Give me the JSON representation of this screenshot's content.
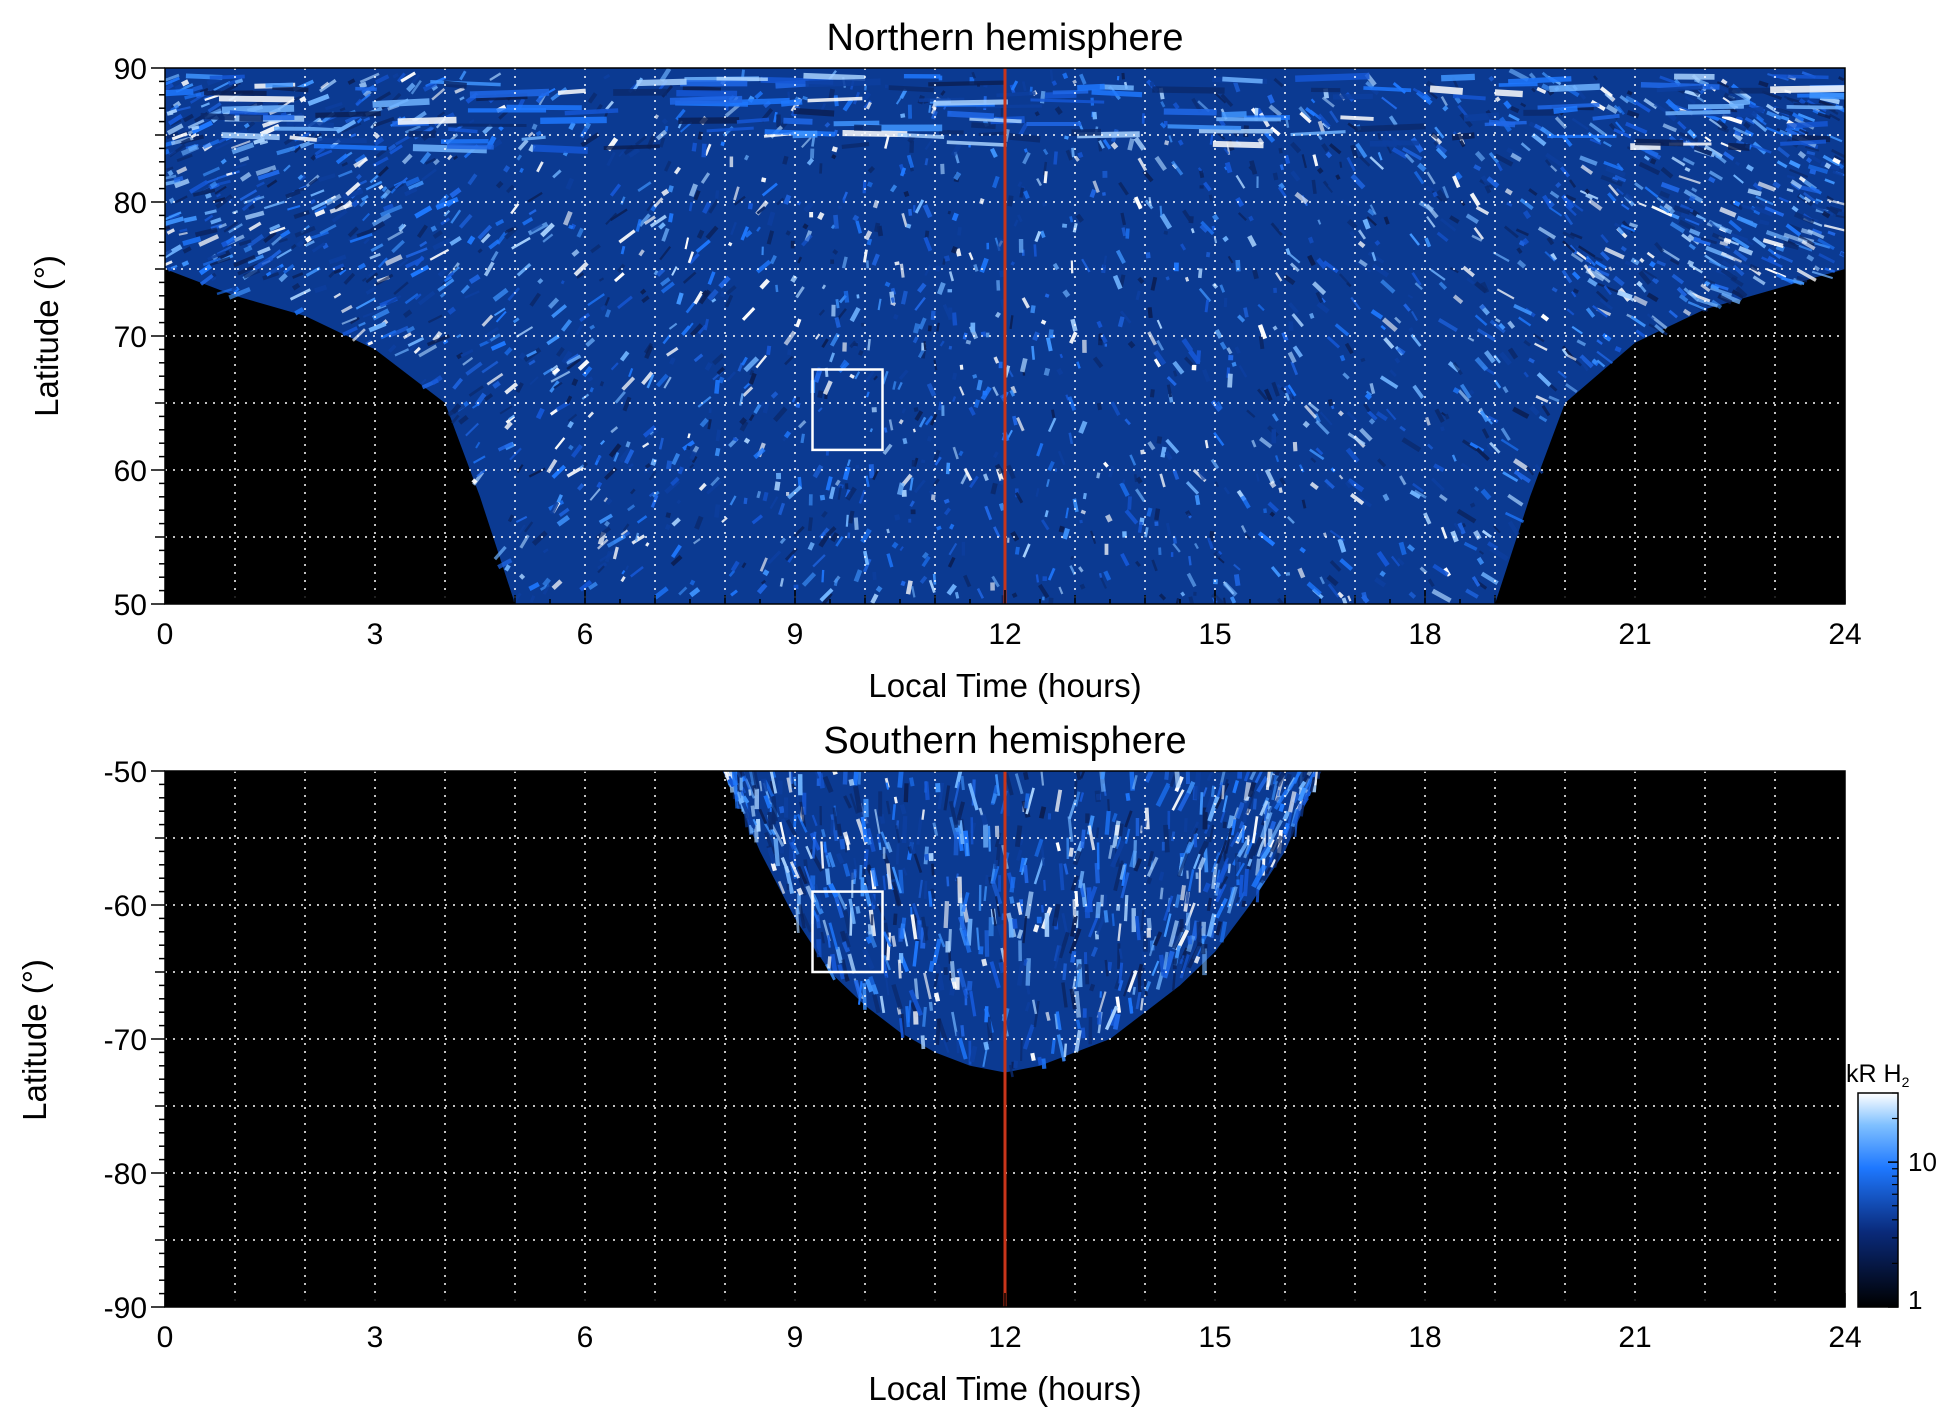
{
  "colors": {
    "background": "#000000",
    "auroral_low": "#0a2a6e",
    "auroral_mid": "#1e78ff",
    "auroral_high": "#ffffff",
    "noon_line": "#c8351a",
    "grid": "#ffffff",
    "box": "#ffffff"
  },
  "colorbar": {
    "title": "kR H",
    "title_subscript": "2",
    "ticks": [
      "10",
      "1"
    ],
    "tick_values": [
      10,
      1
    ],
    "range": [
      1,
      30
    ],
    "scale": "log"
  },
  "chart_data": [
    {
      "type": "heatmap",
      "title": "Northern hemisphere",
      "xlabel": "Local Time (hours)",
      "ylabel": "Latitude (°)",
      "xlim": [
        0,
        24
      ],
      "ylim": [
        50,
        90
      ],
      "xticks": [
        "0",
        "3",
        "6",
        "9",
        "12",
        "15",
        "18",
        "21",
        "24"
      ],
      "xtick_values": [
        0,
        3,
        6,
        9,
        12,
        15,
        18,
        21,
        24
      ],
      "yticks": [
        "50",
        "60",
        "70",
        "80",
        "90"
      ],
      "ytick_values": [
        50,
        60,
        70,
        80,
        90
      ],
      "grid": true,
      "grid_x_step": 1,
      "grid_y_step": 5,
      "reference_line_x": 12,
      "box": {
        "x": [
          9.25,
          10.25
        ],
        "y": [
          61.5,
          67.5
        ]
      },
      "coverage_boundary": {
        "lt": [
          0,
          1,
          2,
          3,
          4,
          4.5,
          5,
          19,
          19.5,
          20,
          21,
          22,
          23,
          24
        ],
        "lat": [
          75,
          73,
          71.5,
          69,
          65,
          58,
          50,
          50,
          58,
          65,
          69.5,
          72,
          73.5,
          75
        ]
      }
    },
    {
      "type": "heatmap",
      "title": "Southern hemisphere",
      "xlabel": "Local Time (hours)",
      "ylabel": "Latitude (°)",
      "xlim": [
        0,
        24
      ],
      "ylim": [
        -90,
        -50
      ],
      "xticks": [
        "0",
        "3",
        "6",
        "9",
        "12",
        "15",
        "18",
        "21",
        "24"
      ],
      "xtick_values": [
        0,
        3,
        6,
        9,
        12,
        15,
        18,
        21,
        24
      ],
      "yticks": [
        "-50",
        "-60",
        "-70",
        "-80",
        "-90"
      ],
      "ytick_values": [
        -50,
        -60,
        -70,
        -80,
        -90
      ],
      "grid": true,
      "grid_x_step": 1,
      "grid_y_step": 5,
      "reference_line_x": 12,
      "box": {
        "x": [
          9.25,
          10.25
        ],
        "y": [
          -65,
          -59
        ]
      },
      "coverage_boundary": {
        "lt": [
          8,
          8.5,
          9,
          9.5,
          10,
          10.5,
          11,
          11.5,
          12,
          12.5,
          13,
          13.5,
          14,
          14.5,
          15,
          15.5,
          16,
          16.5
        ],
        "lat": [
          -50,
          -56,
          -61,
          -65,
          -67.5,
          -69.5,
          -71,
          -72,
          -72.5,
          -72,
          -71,
          -70,
          -68,
          -66,
          -63.5,
          -60,
          -56,
          -50
        ]
      }
    }
  ]
}
